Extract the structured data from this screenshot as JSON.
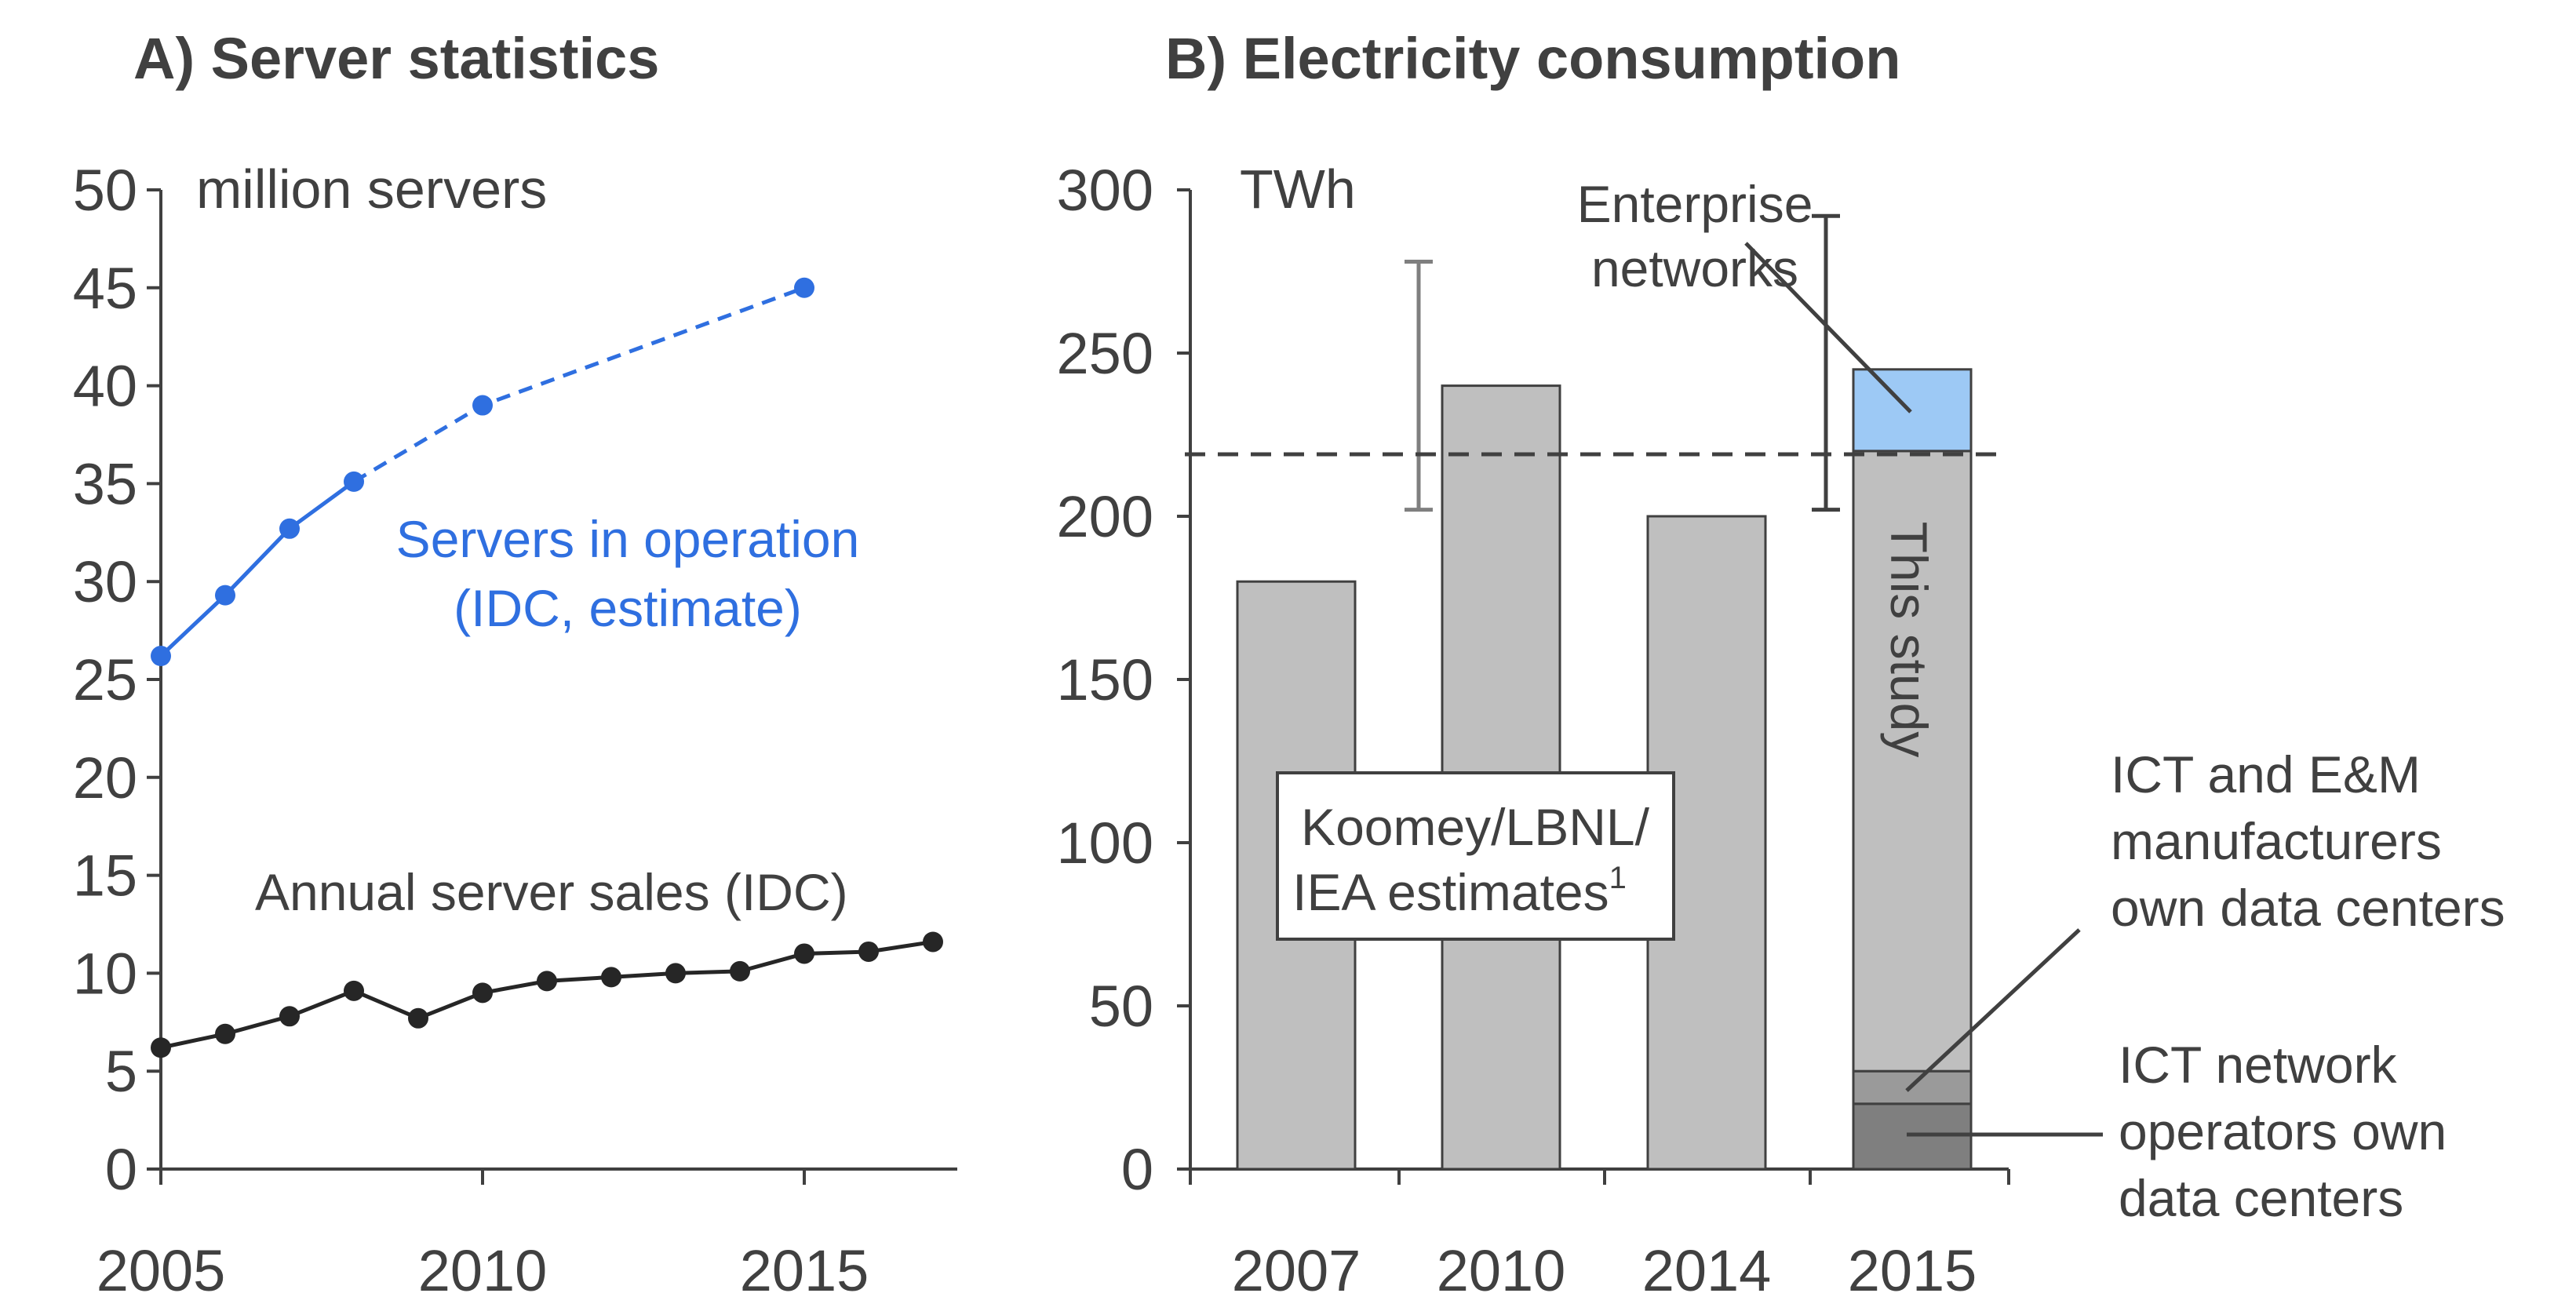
{
  "colors": {
    "servers": "#2f6fe0",
    "sales": "#262626",
    "bar": "#bfbfbf",
    "bar_outline": "#404040",
    "enterprise": "#9dc9f5",
    "ict_network": "#7f7f7f",
    "ict_em": "#9a9a9a",
    "text": "#404040",
    "error_bar_a": "#7f7f7f",
    "error_bar_b": "#404040"
  },
  "chart_data": [
    {
      "type": "line",
      "title": "A) Server statistics",
      "ylabel": "million servers",
      "xlabel": "",
      "ylim": [
        0,
        50
      ],
      "yticks": [
        "0",
        "5",
        "10",
        "15",
        "20",
        "25",
        "30",
        "35",
        "40",
        "45",
        "50"
      ],
      "xlim": [
        2005,
        2017.5
      ],
      "xticks": [
        "2005",
        "2010",
        "2015"
      ],
      "series": [
        {
          "name": "Servers in operation (IDC, estimate)",
          "label_line1": "Servers in operation",
          "label_line2": "(IDC, estimate)",
          "x": [
            2005,
            2006,
            2007,
            2008,
            2010,
            2015
          ],
          "values": [
            26.2,
            29.3,
            32.7,
            35.1,
            39.0,
            45.0
          ],
          "solid_until": 2008,
          "dashed_from": 2008
        },
        {
          "name": "Annual server sales (IDC)",
          "x": [
            2005,
            2006,
            2007,
            2008,
            2009,
            2010,
            2011,
            2012,
            2013,
            2014,
            2015,
            2016,
            2017
          ],
          "values": [
            6.2,
            6.9,
            7.8,
            9.1,
            7.7,
            9.0,
            9.6,
            9.8,
            10.0,
            10.1,
            11.0,
            11.1,
            11.6
          ]
        }
      ]
    },
    {
      "type": "bar",
      "title": "B) Electricity consumption",
      "ylabel": "TWh",
      "ylim": [
        0,
        300
      ],
      "yticks": [
        "0",
        "50",
        "100",
        "150",
        "200",
        "250",
        "300"
      ],
      "categories": [
        "2007",
        "2010",
        "2014",
        "2015"
      ],
      "values": [
        180,
        240,
        200,
        245
      ],
      "stack_2015": {
        "ict_network_operators": 20,
        "ict_em_manufacturers": 10,
        "this_study_rest": 190,
        "enterprise_networks": 25
      },
      "reference_line": 219,
      "error_bars": [
        {
          "group": "Koomey/LBNL/IEA",
          "low": 202,
          "high": 278
        },
        {
          "group": "This study",
          "low": 202,
          "high": 292
        }
      ],
      "annotations": {
        "koomey_line1": "Koomey/LBNL/",
        "koomey_line2": "IEA estimates",
        "koomey_sup": "1",
        "this_study": "This study",
        "enterprise_line1": "Enterprise",
        "enterprise_line2": "networks",
        "ict_em_line1": "ICT and E&M",
        "ict_em_line2": "manufacturers",
        "ict_em_line3": "own data centers",
        "ict_net_line1": "ICT network",
        "ict_net_line2": "operators own",
        "ict_net_line3": "data centers"
      }
    }
  ]
}
